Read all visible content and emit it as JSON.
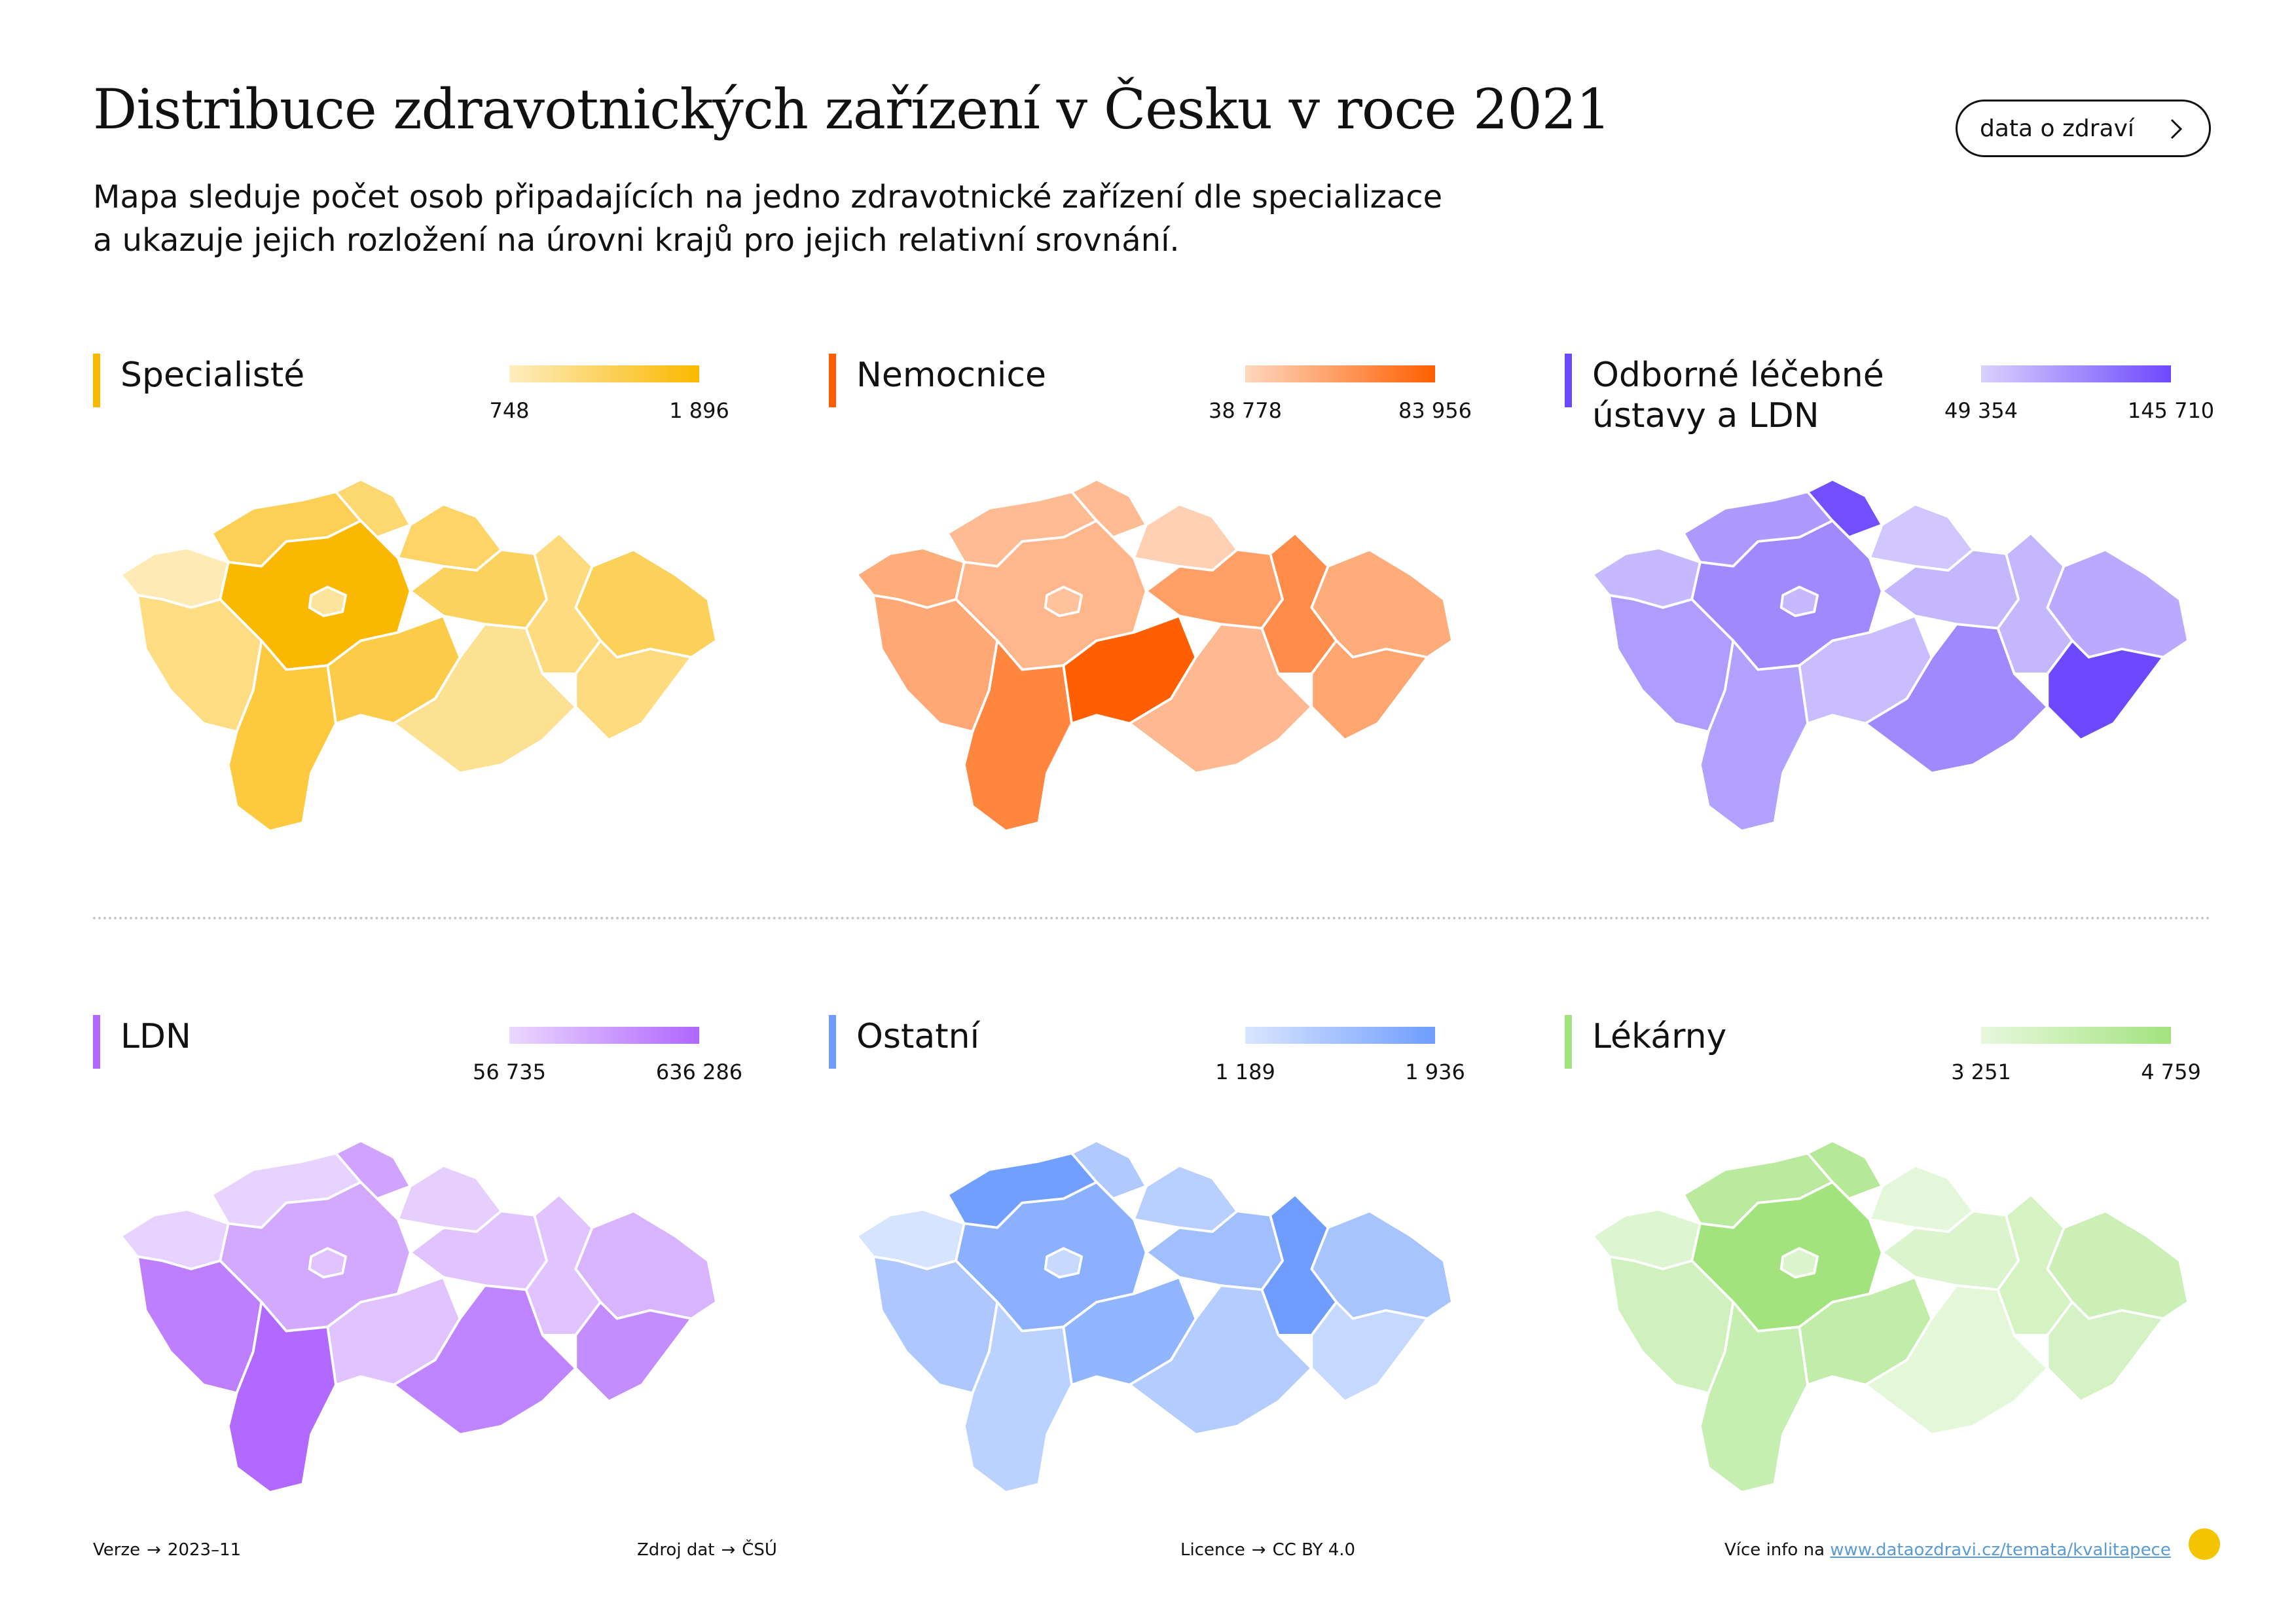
{
  "title": "Distribuce zdravotnických zařízení v Česku v roce 2021",
  "subtitle": [
    "Mapa sleduje počet osob připadajících na jedno zdravotnické zařízení dle specializace",
    "a ukazuje jejich rozložení na úrovni krajů pro jejich relativní srovnání."
  ],
  "link_button": {
    "label": "data o zdraví",
    "icon": "chevron-right-icon"
  },
  "panels": [
    {
      "title": "Specialisté",
      "min": "748",
      "max": "1 896",
      "color": "#fbb800",
      "region_levels": {
        "PHA": 0.35,
        "STC": 1.0,
        "KVK": 0.2,
        "ULK": 0.62,
        "LBK": 0.5,
        "HKK": 0.55,
        "PAK": 0.58,
        "PLK": 0.42,
        "JHC": 0.72,
        "VYS": 0.68,
        "JHM": 0.35,
        "OLK": 0.44,
        "ZLK": 0.44,
        "MSK": 0.6
      }
    },
    {
      "title": "Nemocnice",
      "min": "38 778",
      "max": "83 956",
      "color": "#ff5f00",
      "region_levels": {
        "PHA": 0.3,
        "STC": 0.38,
        "KVK": 0.45,
        "ULK": 0.35,
        "LBK": 0.35,
        "HKK": 0.2,
        "PAK": 0.55,
        "PLK": 0.48,
        "JHC": 0.72,
        "VYS": 1.0,
        "JHM": 0.36,
        "OLK": 0.68,
        "ZLK": 0.5,
        "MSK": 0.45
      }
    },
    {
      "title": "Odborné léčebné ústavy a LDN",
      "min": "49 354",
      "max": "145 710",
      "color": "#6c48ff",
      "region_levels": {
        "PHA": 0.3,
        "STC": 0.6,
        "KVK": 0.3,
        "ULK": 0.5,
        "LBK": 0.95,
        "HKK": 0.22,
        "PAK": 0.32,
        "PLK": 0.48,
        "JHC": 0.45,
        "VYS": 0.28,
        "JHM": 0.6,
        "OLK": 0.32,
        "ZLK": 1.0,
        "MSK": 0.4
      }
    },
    {
      "title": "LDN",
      "min": "56 735",
      "max": "636 286",
      "color": "#b066ff",
      "region_levels": {
        "PHA": 0.3,
        "STC": 0.5,
        "KVK": 0.2,
        "ULK": 0.2,
        "LBK": 0.55,
        "HKK": 0.22,
        "PAK": 0.3,
        "PLK": 0.82,
        "JHC": 0.98,
        "VYS": 0.3,
        "JHM": 0.78,
        "OLK": 0.3,
        "ZLK": 0.72,
        "MSK": 0.42
      }
    },
    {
      "title": "Ostatní",
      "min": "1 189",
      "max": "1 936",
      "color": "#6e9dff",
      "region_levels": {
        "PHA": 0.3,
        "STC": 0.78,
        "KVK": 0.18,
        "ULK": 0.98,
        "LBK": 0.48,
        "HKK": 0.42,
        "PAK": 0.6,
        "PLK": 0.5,
        "JHC": 0.4,
        "VYS": 0.72,
        "JHM": 0.45,
        "OLK": 1.0,
        "ZLK": 0.32,
        "MSK": 0.55
      }
    },
    {
      "title": "Lékárny",
      "min": "3 251",
      "max": "4 759",
      "color": "#a3e37e",
      "region_levels": {
        "PHA": 0.3,
        "STC": 1.0,
        "KVK": 0.28,
        "ULK": 0.72,
        "LBK": 0.78,
        "HKK": 0.18,
        "PAK": 0.3,
        "PLK": 0.44,
        "JHC": 0.55,
        "VYS": 0.62,
        "JHM": 0.2,
        "OLK": 0.4,
        "ZLK": 0.38,
        "MSK": 0.5
      }
    }
  ],
  "footer": {
    "version_label": "Verze",
    "version_value": "2023–11",
    "source_label": "Zdroj dat",
    "source_value": "ČSÚ",
    "license_label": "Licence",
    "license_value": "CC BY 4.0",
    "more_label": "Více info na",
    "more_url": "www.dataozdravi.cz/temata/kvalitapece",
    "arrow": "→"
  }
}
